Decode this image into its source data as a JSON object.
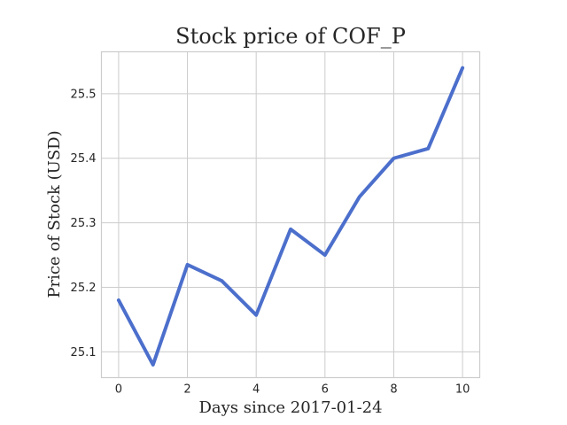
{
  "chart_data": {
    "type": "line",
    "title": "Stock price of COF_P",
    "xlabel": "Days since 2017-01-24",
    "ylabel": "Price of Stock (USD)",
    "xlim": [
      -0.5,
      10.5
    ],
    "ylim": [
      25.06,
      25.565
    ],
    "xticks": [
      0,
      2,
      4,
      6,
      8,
      10
    ],
    "yticks": [
      25.1,
      25.2,
      25.3,
      25.4,
      25.5
    ],
    "xtick_labels": [
      "0",
      "2",
      "4",
      "6",
      "8",
      "10"
    ],
    "ytick_labels": [
      "25.1",
      "25.2",
      "25.3",
      "25.4",
      "25.5"
    ],
    "grid": true,
    "series": [
      {
        "color": "#4c6fcc",
        "x": [
          0,
          1,
          2,
          3,
          4,
          5,
          6,
          7,
          8,
          9,
          10
        ],
        "y": [
          25.18,
          25.08,
          25.235,
          25.21,
          25.157,
          25.29,
          25.25,
          25.34,
          25.4,
          25.415,
          25.54
        ]
      }
    ]
  }
}
